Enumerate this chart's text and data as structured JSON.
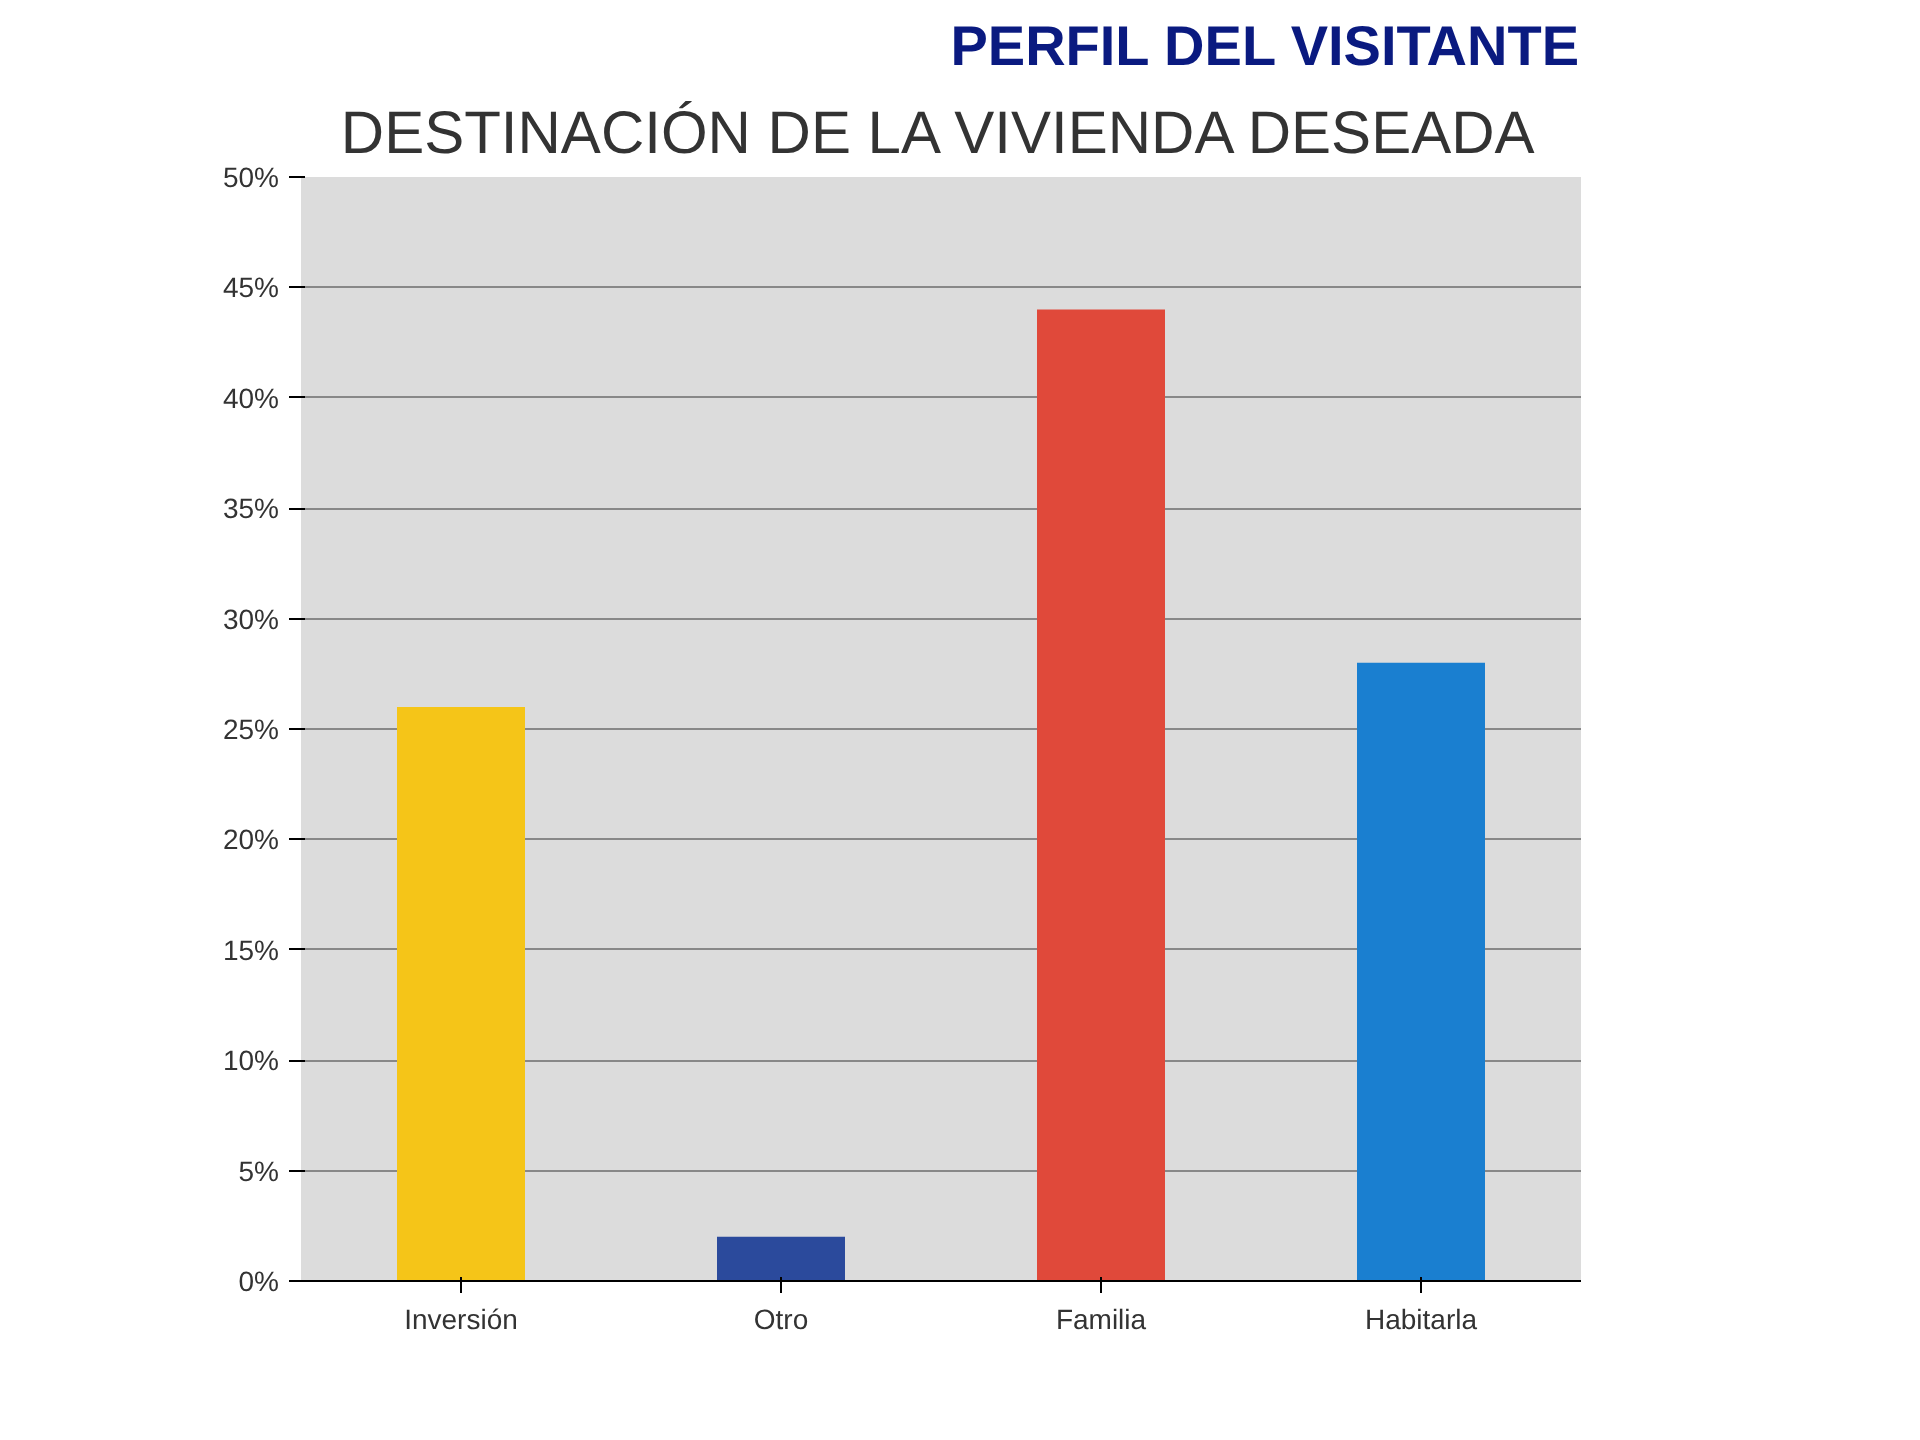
{
  "chart_data": {
    "type": "bar",
    "title": "PERFIL DEL VISITANTE",
    "subtitle": "DESTINACIÓN DE LA VIVIENDA DESEADA",
    "categories": [
      "Inversión",
      "Otro",
      "Familia",
      "Habitarla"
    ],
    "values": [
      26,
      2,
      44,
      28
    ],
    "colors": [
      "#f5c518",
      "#2b4a9c",
      "#e0493a",
      "#1a7fd0"
    ],
    "ylim": [
      0,
      50
    ],
    "yticks": [
      {
        "value": 0,
        "label": "0%"
      },
      {
        "value": 5,
        "label": "5%"
      },
      {
        "value": 10,
        "label": "10%"
      },
      {
        "value": 15,
        "label": "15%"
      },
      {
        "value": 20,
        "label": "20%"
      },
      {
        "value": 25,
        "label": "25%"
      },
      {
        "value": 30,
        "label": "30%"
      },
      {
        "value": 35,
        "label": "35%"
      },
      {
        "value": 40,
        "label": "40%"
      },
      {
        "value": 45,
        "label": "45%"
      },
      {
        "value": 50,
        "label": "50%"
      }
    ],
    "grid": "y"
  }
}
